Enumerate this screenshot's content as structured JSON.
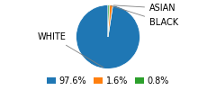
{
  "chart_data": {
    "type": "pie",
    "categories": [
      "WHITE",
      "ASIAN",
      "BLACK"
    ],
    "values": [
      97.6,
      1.6,
      0.8
    ],
    "value_labels": [
      "97.6%",
      "1.6%",
      "0.8%"
    ],
    "legend": "lower center"
  }
}
